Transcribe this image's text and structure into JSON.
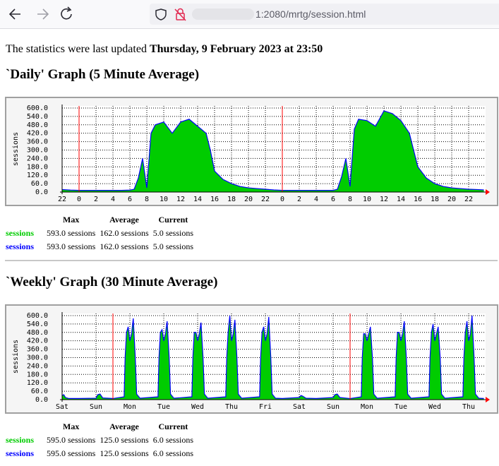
{
  "browser": {
    "url": "1:2080/mrtg/session.html"
  },
  "status": {
    "prefix": "The statistics were last updated",
    "date": "Thursday, 9 February 2023 at 23:50"
  },
  "chart_data": [
    {
      "type": "area",
      "title": "`Daily' Graph (5 Minute Average)",
      "y_label": "sessions",
      "xlim": [
        -2,
        48
      ],
      "ylim": [
        0,
        615
      ],
      "grid": true,
      "day_lines": [
        0,
        24
      ],
      "xticks": [
        {
          "value": -2,
          "label": "22"
        },
        0,
        2,
        4,
        6,
        8,
        10,
        12,
        14,
        16,
        18,
        20,
        22,
        {
          "value": 24,
          "label": "0"
        },
        {
          "value": 26,
          "label": "2"
        },
        {
          "value": 28,
          "label": "4"
        },
        {
          "value": 30,
          "label": "6"
        },
        {
          "value": 32,
          "label": "8"
        },
        {
          "value": 34,
          "label": "10"
        },
        {
          "value": 36,
          "label": "12"
        },
        {
          "value": 38,
          "label": "14"
        },
        {
          "value": 40,
          "label": "16"
        },
        {
          "value": 42,
          "label": "18"
        },
        {
          "value": 44,
          "label": "20"
        },
        {
          "value": 46,
          "label": "22"
        }
      ],
      "yticks": [
        {
          "value": 0,
          "label": "0.0"
        },
        {
          "value": 60,
          "label": "60.0"
        },
        {
          "value": 120,
          "label": "120.0"
        },
        {
          "value": 180,
          "label": "180.0"
        },
        {
          "value": 240,
          "label": "240.0"
        },
        {
          "value": 300,
          "label": "300.0"
        },
        {
          "value": 360,
          "label": "360.0"
        },
        {
          "value": 420,
          "label": "420.0"
        },
        {
          "value": 480,
          "label": "480.0"
        },
        {
          "value": 540,
          "label": "540.0"
        },
        {
          "value": 600,
          "label": "600.0"
        }
      ],
      "x": [
        -2,
        -1,
        0,
        1,
        2,
        3,
        4,
        5,
        6,
        6.5,
        7,
        7.5,
        8,
        8.5,
        9,
        10,
        11,
        12,
        13,
        14,
        15,
        15.5,
        16,
        17,
        18,
        19,
        20,
        21,
        22,
        23,
        24,
        25,
        26,
        27,
        28,
        29,
        30,
        30.5,
        31,
        31.5,
        32,
        32.5,
        33,
        34,
        35,
        36,
        37,
        38,
        39,
        39.5,
        40,
        41,
        42,
        43,
        44,
        45,
        46,
        47,
        47.8
      ],
      "series": [
        {
          "name": "sessions",
          "color": "#00cc00",
          "style": "area",
          "values": [
            18,
            14,
            12,
            12,
            12,
            12,
            12,
            12,
            14,
            20,
            100,
            240,
            30,
            420,
            480,
            500,
            420,
            500,
            520,
            470,
            420,
            300,
            150,
            90,
            60,
            40,
            30,
            25,
            20,
            15,
            12,
            12,
            12,
            12,
            12,
            12,
            12,
            20,
            110,
            240,
            40,
            450,
            520,
            510,
            470,
            580,
            560,
            510,
            420,
            300,
            180,
            100,
            60,
            40,
            30,
            25,
            20,
            18,
            15
          ]
        },
        {
          "name": "sessions",
          "color": "#0000ff",
          "style": "line",
          "values": [
            18,
            14,
            12,
            12,
            12,
            12,
            12,
            12,
            14,
            20,
            100,
            240,
            30,
            420,
            480,
            500,
            420,
            500,
            520,
            470,
            420,
            300,
            150,
            90,
            60,
            40,
            30,
            25,
            20,
            15,
            12,
            12,
            12,
            12,
            12,
            12,
            12,
            20,
            110,
            240,
            40,
            450,
            520,
            510,
            470,
            580,
            560,
            510,
            420,
            300,
            180,
            100,
            60,
            40,
            30,
            25,
            20,
            18,
            15
          ]
        }
      ]
    },
    {
      "type": "area",
      "title": "`Weekly' Graph (30 Minute Average)",
      "y_label": "sessions",
      "xlim": [
        0.5,
        13
      ],
      "ylim": [
        0,
        615
      ],
      "grid": true,
      "day_lines": [
        2,
        9
      ],
      "xticks": [
        {
          "value": 0.5,
          "label": "Sat"
        },
        {
          "value": 1.5,
          "label": "Sun"
        },
        {
          "value": 2.5,
          "label": "Mon"
        },
        {
          "value": 3.5,
          "label": "Tue"
        },
        {
          "value": 4.5,
          "label": "Wed"
        },
        {
          "value": 5.5,
          "label": "Thu"
        },
        {
          "value": 6.5,
          "label": "Fri"
        },
        {
          "value": 7.5,
          "label": "Sat"
        },
        {
          "value": 8.5,
          "label": "Sun"
        },
        {
          "value": 9.5,
          "label": "Mon"
        },
        {
          "value": 10.5,
          "label": "Tue"
        },
        {
          "value": 11.5,
          "label": "Wed"
        },
        {
          "value": 12.5,
          "label": "Thu"
        }
      ],
      "yticks": [
        {
          "value": 0,
          "label": "0.0"
        },
        {
          "value": 60,
          "label": "60.0"
        },
        {
          "value": 120,
          "label": "120.0"
        },
        {
          "value": 180,
          "label": "180.0"
        },
        {
          "value": 240,
          "label": "240.0"
        },
        {
          "value": 300,
          "label": "300.0"
        },
        {
          "value": 360,
          "label": "360.0"
        },
        {
          "value": 420,
          "label": "420.0"
        },
        {
          "value": 480,
          "label": "480.0"
        },
        {
          "value": 540,
          "label": "540.0"
        },
        {
          "value": 600,
          "label": "600.0"
        }
      ],
      "x": [
        0.5,
        0.55,
        0.6,
        0.7,
        1.0,
        1.5,
        1.55,
        1.62,
        1.7,
        2.0,
        2.33,
        2.36,
        2.4,
        2.45,
        2.5,
        2.55,
        2.6,
        2.66,
        2.7,
        2.8,
        3.33,
        3.36,
        3.4,
        3.45,
        3.5,
        3.55,
        3.6,
        3.66,
        3.7,
        3.8,
        4.33,
        4.36,
        4.4,
        4.45,
        4.5,
        4.55,
        4.6,
        4.66,
        4.7,
        4.8,
        5.33,
        5.36,
        5.4,
        5.45,
        5.5,
        5.55,
        5.6,
        5.66,
        5.7,
        5.8,
        6.33,
        6.36,
        6.4,
        6.45,
        6.5,
        6.55,
        6.6,
        6.66,
        6.7,
        6.8,
        7.0,
        7.5,
        7.55,
        7.6,
        7.7,
        8.0,
        8.5,
        8.55,
        8.62,
        8.7,
        9.0,
        9.33,
        9.36,
        9.4,
        9.45,
        9.5,
        9.55,
        9.6,
        9.66,
        9.7,
        9.8,
        10.33,
        10.36,
        10.4,
        10.45,
        10.5,
        10.55,
        10.6,
        10.66,
        10.7,
        10.8,
        11.33,
        11.36,
        11.4,
        11.45,
        11.5,
        11.55,
        11.6,
        11.66,
        11.7,
        11.8,
        12.33,
        12.36,
        12.4,
        12.45,
        12.5,
        12.55,
        12.6,
        12.66,
        12.7,
        12.8,
        12.95
      ],
      "series": [
        {
          "name": "sessions",
          "color": "#00cc00",
          "style": "area",
          "values": [
            30,
            35,
            15,
            8,
            8,
            10,
            35,
            40,
            12,
            8,
            20,
            300,
            480,
            520,
            420,
            470,
            580,
            300,
            40,
            10,
            20,
            300,
            480,
            500,
            420,
            470,
            560,
            300,
            40,
            10,
            20,
            300,
            480,
            480,
            420,
            470,
            550,
            300,
            40,
            10,
            20,
            300,
            480,
            600,
            420,
            470,
            570,
            300,
            40,
            10,
            20,
            300,
            480,
            520,
            420,
            470,
            590,
            300,
            40,
            10,
            8,
            15,
            30,
            25,
            10,
            8,
            15,
            35,
            40,
            15,
            8,
            20,
            300,
            470,
            470,
            420,
            470,
            520,
            300,
            40,
            10,
            20,
            300,
            480,
            480,
            420,
            470,
            560,
            300,
            40,
            10,
            20,
            300,
            480,
            540,
            420,
            470,
            520,
            300,
            40,
            10,
            20,
            300,
            480,
            560,
            420,
            470,
            600,
            300,
            40,
            10,
            8
          ]
        },
        {
          "name": "sessions",
          "color": "#0000ff",
          "style": "line",
          "values": [
            30,
            35,
            15,
            8,
            8,
            10,
            35,
            40,
            12,
            8,
            20,
            300,
            480,
            520,
            420,
            470,
            580,
            300,
            40,
            10,
            20,
            300,
            480,
            500,
            420,
            470,
            560,
            300,
            40,
            10,
            20,
            300,
            480,
            480,
            420,
            470,
            550,
            300,
            40,
            10,
            20,
            300,
            480,
            600,
            420,
            470,
            570,
            300,
            40,
            10,
            20,
            300,
            480,
            520,
            420,
            470,
            590,
            300,
            40,
            10,
            8,
            15,
            30,
            25,
            10,
            8,
            15,
            35,
            40,
            15,
            8,
            20,
            300,
            470,
            470,
            420,
            470,
            520,
            300,
            40,
            10,
            20,
            300,
            480,
            480,
            420,
            470,
            560,
            300,
            40,
            10,
            20,
            300,
            480,
            540,
            420,
            470,
            520,
            300,
            40,
            10,
            20,
            300,
            480,
            560,
            420,
            470,
            600,
            300,
            40,
            10,
            8
          ]
        }
      ]
    }
  ],
  "tables": [
    {
      "header": [
        "Max",
        "Average",
        "Current"
      ],
      "rows": [
        [
          "593.0 sessions",
          "162.0 sessions",
          "5.0 sessions"
        ],
        [
          "593.0 sessions",
          "162.0 sessions",
          "5.0 sessions"
        ]
      ]
    },
    {
      "header": [
        "Max",
        "Average",
        "Current"
      ],
      "rows": [
        [
          "595.0 sessions",
          "125.0 sessions",
          "6.0 sessions"
        ],
        [
          "595.0 sessions",
          "125.0 sessions",
          "6.0 sessions"
        ]
      ]
    }
  ]
}
